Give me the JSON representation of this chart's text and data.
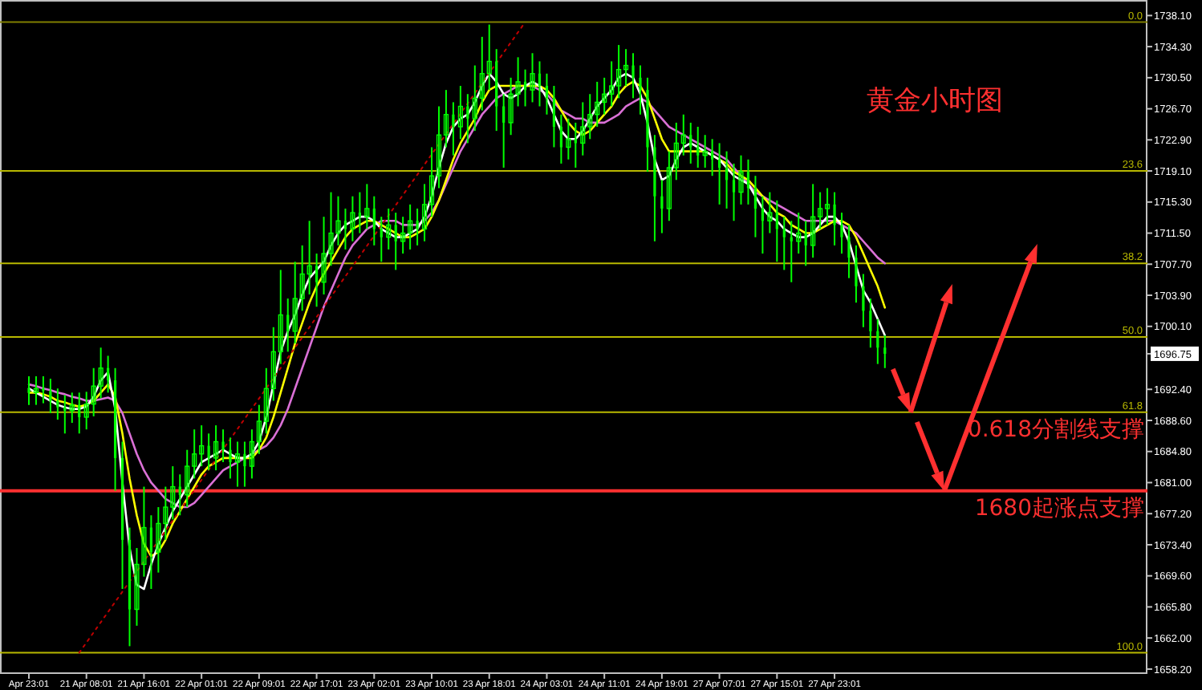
{
  "chart_data": {
    "type": "candlestick",
    "title": "黄金小时图",
    "categories": [
      "Apr 23:01",
      null,
      null,
      null,
      null,
      null,
      null,
      null,
      "21 Apr 08:01",
      null,
      null,
      null,
      null,
      null,
      null,
      null,
      "21 Apr 16:01",
      null,
      null,
      null,
      null,
      null,
      null,
      null,
      "22 Apr 01:01",
      null,
      null,
      null,
      null,
      null,
      null,
      null,
      "22 Apr 09:01",
      null,
      null,
      null,
      null,
      null,
      null,
      null,
      "22 Apr 17:01",
      null,
      null,
      null,
      null,
      null,
      null,
      null,
      "23 Apr 02:01",
      null,
      null,
      null,
      null,
      null,
      null,
      null,
      "23 Apr 10:01",
      null,
      null,
      null,
      null,
      null,
      null,
      null,
      "23 Apr 18:01",
      null,
      null,
      null,
      null,
      null,
      null,
      null,
      "24 Apr 03:01",
      null,
      null,
      null,
      null,
      null,
      null,
      null,
      "24 Apr 11:01",
      null,
      null,
      null,
      null,
      null,
      null,
      null,
      "24 Apr 19:01",
      null,
      null,
      null,
      null,
      null,
      null,
      null,
      "27 Apr 07:01",
      null,
      null,
      null,
      null,
      null,
      null,
      null,
      "27 Apr 15:01",
      null,
      null,
      null,
      null,
      null,
      null,
      null,
      "27 Apr 23:01",
      null,
      null,
      null,
      null,
      null,
      null,
      null
    ],
    "color": "#00ff00",
    "ohlc": [
      [
        1692.5,
        1694.0,
        1690.5,
        1692.0
      ],
      [
        1692.0,
        1694.0,
        1690.5,
        1692.5
      ],
      [
        1692.5,
        1694.0,
        1690.7,
        1692.2
      ],
      [
        1692.2,
        1693.7,
        1689.5,
        1691.0
      ],
      [
        1691.0,
        1692.5,
        1688.7,
        1690.2
      ],
      [
        1690.2,
        1691.7,
        1687.0,
        1689.8
      ],
      [
        1689.8,
        1692.0,
        1688.3,
        1690.5
      ],
      [
        1690.5,
        1692.0,
        1687.0,
        1689.0
      ],
      [
        1689.0,
        1692.1,
        1687.5,
        1690.6
      ],
      [
        1690.6,
        1695.0,
        1689.1,
        1692.8
      ],
      [
        1692.8,
        1697.5,
        1691.3,
        1695.0
      ],
      [
        1695.0,
        1696.5,
        1692.0,
        1693.5
      ],
      [
        1693.5,
        1695.0,
        1680.0,
        1684.0
      ],
      [
        1684.0,
        1686.0,
        1668.0,
        1674.0
      ],
      [
        1674.0,
        1675.5,
        1661.0,
        1665.5
      ],
      [
        1665.5,
        1673.0,
        1663.5,
        1671.0
      ],
      [
        1671.0,
        1680.5,
        1669.5,
        1675.5
      ],
      [
        1675.5,
        1677.0,
        1668.0,
        1672.5
      ],
      [
        1672.5,
        1678.0,
        1670.0,
        1676.0
      ],
      [
        1676.0,
        1680.5,
        1674.0,
        1678.0
      ],
      [
        1678.0,
        1683.0,
        1676.5,
        1680.5
      ],
      [
        1680.5,
        1682.0,
        1677.0,
        1679.5
      ],
      [
        1679.5,
        1685.0,
        1678.0,
        1683.0
      ],
      [
        1683.0,
        1687.5,
        1681.5,
        1684.5
      ],
      [
        1684.5,
        1688.0,
        1683.0,
        1685.5
      ],
      [
        1685.5,
        1687.0,
        1682.5,
        1684.0
      ],
      [
        1684.0,
        1688.0,
        1682.5,
        1686.0
      ],
      [
        1686.0,
        1687.5,
        1683.5,
        1685.0
      ],
      [
        1685.0,
        1686.5,
        1681.5,
        1683.5
      ],
      [
        1683.5,
        1686.0,
        1680.5,
        1684.5
      ],
      [
        1684.5,
        1686.0,
        1680.5,
        1683.0
      ],
      [
        1683.0,
        1687.5,
        1681.5,
        1686.0
      ],
      [
        1686.0,
        1690.5,
        1684.5,
        1688.5
      ],
      [
        1688.5,
        1695.0,
        1687.0,
        1692.5
      ],
      [
        1692.5,
        1700.0,
        1691.0,
        1697.0
      ],
      [
        1697.0,
        1707.0,
        1695.5,
        1701.5
      ],
      [
        1701.5,
        1703.5,
        1697.0,
        1699.5
      ],
      [
        1699.5,
        1708.0,
        1698.0,
        1703.5
      ],
      [
        1703.5,
        1710.0,
        1702.0,
        1706.5
      ],
      [
        1706.5,
        1713.0,
        1704.0,
        1707.5
      ],
      [
        1707.5,
        1709.0,
        1702.5,
        1705.5
      ],
      [
        1705.5,
        1713.5,
        1704.0,
        1709.0
      ],
      [
        1709.0,
        1716.5,
        1707.5,
        1711.5
      ],
      [
        1711.5,
        1716.0,
        1710.0,
        1713.0
      ],
      [
        1713.0,
        1714.5,
        1709.5,
        1712.0
      ],
      [
        1712.0,
        1716.0,
        1710.5,
        1714.0
      ],
      [
        1714.0,
        1716.5,
        1711.5,
        1713.5
      ],
      [
        1713.5,
        1717.5,
        1712.0,
        1714.5
      ],
      [
        1714.5,
        1716.0,
        1710.0,
        1712.0
      ],
      [
        1712.0,
        1713.5,
        1708.0,
        1711.0
      ],
      [
        1711.0,
        1714.5,
        1709.5,
        1712.5
      ],
      [
        1712.5,
        1714.0,
        1707.0,
        1710.5
      ],
      [
        1710.5,
        1713.5,
        1709.0,
        1711.5
      ],
      [
        1711.5,
        1715.0,
        1709.5,
        1713.0
      ],
      [
        1713.0,
        1714.5,
        1710.0,
        1712.0
      ],
      [
        1712.0,
        1717.5,
        1710.5,
        1715.0
      ],
      [
        1715.0,
        1722.0,
        1713.5,
        1718.5
      ],
      [
        1718.5,
        1727.0,
        1717.0,
        1723.5
      ],
      [
        1723.5,
        1729.0,
        1722.0,
        1726.0
      ],
      [
        1726.0,
        1727.5,
        1721.0,
        1724.5
      ],
      [
        1724.5,
        1729.5,
        1723.0,
        1727.0
      ],
      [
        1727.0,
        1728.5,
        1722.5,
        1725.5
      ],
      [
        1725.5,
        1732.0,
        1724.0,
        1728.0
      ],
      [
        1728.0,
        1735.5,
        1726.5,
        1731.0
      ],
      [
        1731.0,
        1737.0,
        1729.0,
        1732.5
      ],
      [
        1732.5,
        1734.0,
        1724.0,
        1727.0
      ],
      [
        1727.0,
        1728.5,
        1719.5,
        1725.0
      ],
      [
        1725.0,
        1730.5,
        1723.5,
        1728.5
      ],
      [
        1728.5,
        1733.0,
        1727.0,
        1730.0
      ],
      [
        1730.0,
        1731.5,
        1727.0,
        1729.0
      ],
      [
        1729.0,
        1733.5,
        1727.5,
        1731.0
      ],
      [
        1731.0,
        1732.5,
        1727.0,
        1729.5
      ],
      [
        1729.5,
        1731.0,
        1726.0,
        1728.0
      ],
      [
        1728.0,
        1729.5,
        1722.0,
        1724.5
      ],
      [
        1724.5,
        1726.0,
        1720.0,
        1722.0
      ],
      [
        1722.0,
        1725.5,
        1720.5,
        1723.0
      ],
      [
        1723.0,
        1725.0,
        1719.5,
        1722.5
      ],
      [
        1722.5,
        1727.5,
        1721.0,
        1724.5
      ],
      [
        1724.5,
        1728.5,
        1723.0,
        1726.0
      ],
      [
        1726.0,
        1730.0,
        1724.5,
        1727.5
      ],
      [
        1727.5,
        1730.5,
        1726.0,
        1728.5
      ],
      [
        1728.5,
        1732.5,
        1727.0,
        1729.5
      ],
      [
        1729.5,
        1734.5,
        1728.0,
        1731.5
      ],
      [
        1731.5,
        1734.0,
        1729.5,
        1732.0
      ],
      [
        1732.0,
        1733.5,
        1728.0,
        1730.5
      ],
      [
        1730.5,
        1732.0,
        1726.0,
        1729.0
      ],
      [
        1729.0,
        1730.5,
        1719.0,
        1722.0
      ],
      [
        1722.0,
        1723.5,
        1710.5,
        1716.0
      ],
      [
        1716.0,
        1718.0,
        1711.5,
        1714.5
      ],
      [
        1714.5,
        1721.5,
        1713.0,
        1719.5
      ],
      [
        1719.5,
        1725.0,
        1718.0,
        1722.5
      ],
      [
        1722.5,
        1726.0,
        1721.0,
        1723.5
      ],
      [
        1723.5,
        1725.0,
        1720.0,
        1722.0
      ],
      [
        1722.0,
        1724.5,
        1719.5,
        1721.0
      ],
      [
        1721.0,
        1723.5,
        1719.5,
        1721.5
      ],
      [
        1721.5,
        1723.0,
        1718.5,
        1720.5
      ],
      [
        1720.5,
        1722.5,
        1715.0,
        1719.5
      ],
      [
        1719.5,
        1721.5,
        1714.5,
        1718.0
      ],
      [
        1718.0,
        1720.0,
        1713.0,
        1716.5
      ],
      [
        1716.5,
        1721.0,
        1715.0,
        1719.0
      ],
      [
        1719.0,
        1720.5,
        1715.0,
        1717.0
      ],
      [
        1717.0,
        1718.5,
        1711.0,
        1714.5
      ],
      [
        1714.5,
        1716.0,
        1709.0,
        1713.0
      ],
      [
        1713.0,
        1716.5,
        1711.5,
        1714.0
      ],
      [
        1714.0,
        1715.5,
        1708.0,
        1712.0
      ],
      [
        1712.0,
        1713.5,
        1707.0,
        1711.0
      ],
      [
        1711.0,
        1713.0,
        1705.5,
        1710.5
      ],
      [
        1710.5,
        1714.0,
        1709.0,
        1711.5
      ],
      [
        1711.5,
        1713.0,
        1707.5,
        1710.0
      ],
      [
        1710.0,
        1717.5,
        1708.5,
        1713.5
      ],
      [
        1713.5,
        1716.5,
        1712.0,
        1714.5
      ],
      [
        1714.5,
        1717.0,
        1712.5,
        1715.0
      ],
      [
        1715.0,
        1716.5,
        1710.0,
        1712.5
      ],
      [
        1712.5,
        1714.0,
        1709.0,
        1711.0
      ],
      [
        1711.0,
        1712.5,
        1706.0,
        1708.5
      ],
      [
        1708.5,
        1710.0,
        1703.0,
        1705.0
      ],
      [
        1705.0,
        1706.5,
        1700.0,
        1702.0
      ],
      [
        1702.0,
        1703.5,
        1697.5,
        1699.5
      ],
      [
        1699.5,
        1701.0,
        1695.5,
        1697.5
      ],
      [
        1697.5,
        1699.0,
        1695.0,
        1696.75
      ]
    ],
    "series": [
      {
        "type": "line",
        "color": "#da70d6",
        "values": [
          1693,
          1692.8,
          1692.5,
          1692.3,
          1692,
          1691.8,
          1691.5,
          1691.3,
          1691,
          1691,
          1691.2,
          1691.4,
          1691,
          1689.5,
          1687,
          1684.5,
          1682.5,
          1681,
          1680,
          1679,
          1678.5,
          1678,
          1678,
          1678.5,
          1679.5,
          1680.5,
          1681.5,
          1682.5,
          1683,
          1683.5,
          1684,
          1684.5,
          1685,
          1685.5,
          1686.5,
          1688,
          1690,
          1692.5,
          1695,
          1697.5,
          1700,
          1702.5,
          1704.5,
          1706.5,
          1708.5,
          1710,
          1711,
          1712,
          1712.5,
          1713,
          1713,
          1713,
          1712.5,
          1712.5,
          1712.5,
          1713,
          1714,
          1715.5,
          1717.5,
          1719.5,
          1721.5,
          1723,
          1724.5,
          1726,
          1727,
          1728,
          1728.5,
          1729,
          1729.5,
          1729.5,
          1729.5,
          1729,
          1728.5,
          1727.5,
          1726.5,
          1726,
          1725.5,
          1725.5,
          1725,
          1725,
          1725,
          1725.5,
          1726,
          1727,
          1727.5,
          1728,
          1727.5,
          1726.5,
          1725.5,
          1724.5,
          1724,
          1723.5,
          1723,
          1722.5,
          1722,
          1721.5,
          1721,
          1720.5,
          1719.5,
          1718.5,
          1717.5,
          1716.5,
          1716,
          1715.5,
          1715,
          1714.5,
          1714,
          1713.5,
          1713,
          1713,
          1713,
          1713,
          1713,
          1712.5,
          1712,
          1711.5,
          1710.5,
          1709.5,
          1708.5,
          1707.8
        ]
      },
      {
        "type": "line",
        "color": "#ffff00",
        "values": [
          1692,
          1692,
          1691.8,
          1691.5,
          1691,
          1690.8,
          1690.5,
          1690.3,
          1690.5,
          1691,
          1692,
          1693,
          1691.5,
          1687,
          1681.5,
          1677,
          1673.5,
          1672,
          1672.5,
          1674,
          1676,
          1677.5,
          1679,
          1680.5,
          1682,
          1683,
          1683.5,
          1684,
          1684,
          1684,
          1684,
          1684,
          1685,
          1686.5,
          1689,
          1692,
          1695,
          1698,
          1700.5,
          1703,
          1705,
          1706.5,
          1708,
          1709.5,
          1711,
          1712,
          1712.5,
          1713,
          1713,
          1712.5,
          1712,
          1711.5,
          1711,
          1711,
          1711.5,
          1712,
          1713.5,
          1715.5,
          1718,
          1720.5,
          1722.5,
          1724,
          1725.5,
          1727.5,
          1729,
          1729.5,
          1729.5,
          1729.5,
          1729.5,
          1729.5,
          1729.5,
          1729.5,
          1729,
          1728,
          1726.5,
          1725,
          1724,
          1723.5,
          1724,
          1725,
          1726,
          1727,
          1728.5,
          1729.5,
          1730,
          1729.5,
          1728,
          1725.5,
          1723,
          1721.5,
          1721.5,
          1721.5,
          1721.5,
          1721.5,
          1721.5,
          1721,
          1720.5,
          1720,
          1719,
          1718.5,
          1718,
          1717,
          1716,
          1715,
          1714,
          1713.5,
          1712.5,
          1712,
          1711.5,
          1711.5,
          1712,
          1712.5,
          1713,
          1713,
          1712.5,
          1711,
          1709,
          1707,
          1705,
          1702.4
        ]
      },
      {
        "type": "line",
        "color": "#ffffff",
        "values": [
          1692.5,
          1692,
          1691.5,
          1691,
          1690.5,
          1690.2,
          1690,
          1690,
          1690.3,
          1691.5,
          1693.5,
          1694.5,
          1690,
          1681,
          1673,
          1668.5,
          1668,
          1671,
          1673.5,
          1675.5,
          1677.5,
          1679,
          1680.5,
          1682,
          1683.5,
          1684,
          1684.5,
          1685,
          1684.5,
          1684,
          1684,
          1684.5,
          1686,
          1689,
          1693,
          1697,
          1699.5,
          1701.5,
          1704,
          1706,
          1707,
          1708,
          1710,
          1711.5,
          1712.5,
          1713,
          1713.5,
          1713.5,
          1713,
          1712,
          1711.5,
          1711,
          1711,
          1711.5,
          1712,
          1713.5,
          1716,
          1719.5,
          1722.5,
          1724.5,
          1725.5,
          1726,
          1727.5,
          1729.5,
          1731,
          1730,
          1728.5,
          1728,
          1728.5,
          1729.5,
          1730,
          1729.5,
          1728,
          1726,
          1724,
          1723,
          1723,
          1724,
          1725.5,
          1727,
          1728,
          1729,
          1730.5,
          1731,
          1730.5,
          1728.5,
          1725,
          1720.5,
          1718,
          1718.5,
          1720.5,
          1722,
          1722.5,
          1722,
          1721.5,
          1721,
          1720.5,
          1719.5,
          1718.5,
          1718,
          1717.5,
          1716,
          1714.5,
          1713.5,
          1713,
          1712,
          1711.5,
          1711,
          1711,
          1711.5,
          1712.5,
          1713.5,
          1713.5,
          1712.5,
          1710.5,
          1707.5,
          1704.5,
          1703,
          1701,
          1699
        ]
      },
      {
        "type": "line",
        "color": "#c00000",
        "line_style": "dotted",
        "values": [
          null,
          null,
          null,
          null,
          null,
          null,
          null,
          1660.2,
          null,
          null,
          null,
          null,
          null,
          null,
          null,
          null,
          null,
          null,
          null,
          null,
          null,
          null,
          null,
          null,
          null,
          null,
          null,
          null,
          null,
          null,
          null,
          null,
          null,
          null,
          null,
          null,
          null,
          null,
          null,
          null,
          null,
          null,
          null,
          null,
          null,
          null,
          null,
          null,
          null,
          null,
          null,
          null,
          null,
          null,
          null,
          null,
          null,
          null,
          null,
          null,
          null,
          null,
          null,
          null,
          null,
          null,
          null,
          null,
          null,
          1737.3,
          null,
          null,
          null,
          null,
          null,
          null,
          null,
          null,
          null,
          null,
          null,
          null,
          null,
          null,
          null,
          null,
          null,
          null,
          null,
          null,
          null,
          null,
          null,
          null,
          null,
          null,
          null,
          null,
          null,
          null,
          null,
          null,
          null,
          null,
          null,
          null,
          null,
          null,
          null,
          null,
          null,
          null,
          null,
          null,
          null,
          null,
          null,
          null,
          null,
          null
        ]
      }
    ],
    "ylim": [
      1657.8,
      1740.0
    ],
    "yticks": [
      {
        "value": 1738.1,
        "label": "1738.10"
      },
      {
        "value": 1734.3,
        "label": "1734.30"
      },
      {
        "value": 1730.5,
        "label": "1730.50"
      },
      {
        "value": 1726.7,
        "label": "1726.70"
      },
      {
        "value": 1722.9,
        "label": "1722.90"
      },
      {
        "value": 1719.1,
        "label": "1719.10"
      },
      {
        "value": 1715.3,
        "label": "1715.30"
      },
      {
        "value": 1711.5,
        "label": "1711.50"
      },
      {
        "value": 1707.7,
        "label": "1707.70"
      },
      {
        "value": 1703.9,
        "label": "1703.90"
      },
      {
        "value": 1700.1,
        "label": "1700.10"
      },
      {
        "value": 1696.75,
        "label": "1696.75"
      },
      {
        "value": 1692.4,
        "label": "1692.40"
      },
      {
        "value": 1688.6,
        "label": "1688.60"
      },
      {
        "value": 1684.8,
        "label": "1684.80"
      },
      {
        "value": 1681.0,
        "label": "1681.00"
      },
      {
        "value": 1677.2,
        "label": "1677.20"
      },
      {
        "value": 1673.4,
        "label": "1673.40"
      },
      {
        "value": 1669.6,
        "label": "1669.60"
      },
      {
        "value": 1665.8,
        "label": "1665.80"
      },
      {
        "value": 1662.0,
        "label": "1662.00"
      },
      {
        "value": 1658.2,
        "label": "1658.20"
      }
    ],
    "ref_lines": [
      {
        "axis": "y",
        "value": 1737.3,
        "color": "#807f00"
      },
      {
        "axis": "y",
        "value": 1719.1,
        "color": "#b8b800"
      },
      {
        "axis": "y",
        "value": 1707.8,
        "color": "#b8b800"
      },
      {
        "axis": "y",
        "value": 1698.8,
        "color": "#b8b800"
      },
      {
        "axis": "y",
        "value": 1689.6,
        "label": "0.618分割线支撑",
        "color": "#b8b800"
      },
      {
        "axis": "y",
        "value": 1660.2,
        "color": "#b8b800"
      },
      {
        "axis": "y",
        "value": 1680,
        "label": "1680起涨点支撑",
        "color": "#ff3030"
      }
    ],
    "annotations": [
      {
        "text": "0.0",
        "y": 1737.3
      },
      {
        "text": "23.6",
        "y": 1719.1
      },
      {
        "text": "38.2",
        "y": 1707.8
      },
      {
        "text": "50.0",
        "y": 1698.8
      },
      {
        "text": "61.8",
        "y": 1689.6
      },
      {
        "text": "100.0",
        "y": 1660.2
      }
    ]
  }
}
